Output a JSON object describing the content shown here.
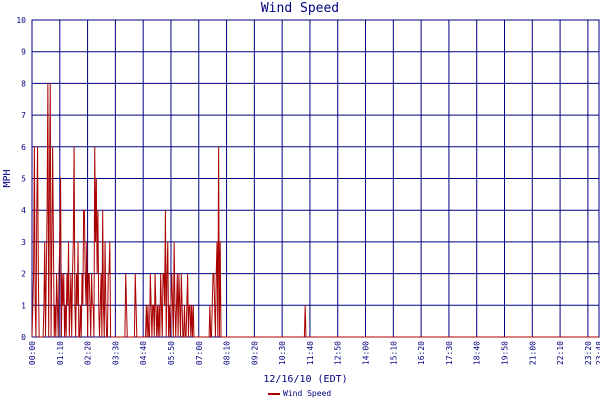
{
  "chart_data": {
    "type": "line",
    "title": "Wind Speed",
    "xlabel": "12/16/10 (EDT)",
    "ylabel": "MPH",
    "ylim": [
      0,
      10
    ],
    "y_ticks": [
      "0",
      "1",
      "2",
      "3",
      "4",
      "5",
      "6",
      "7",
      "8",
      "9",
      "10"
    ],
    "x_ticks": [
      "00:00",
      "01:10",
      "02:20",
      "03:30",
      "04:40",
      "05:50",
      "07:00",
      "08:10",
      "09:20",
      "10:30",
      "11:40",
      "12:50",
      "14:00",
      "15:10",
      "16:20",
      "17:30",
      "18:40",
      "19:50",
      "21:00",
      "22:10",
      "23:20",
      "23:48"
    ],
    "grid": true,
    "legend_position": "bottom",
    "series": [
      {
        "name": "Wind Speed",
        "color": "#aa0000",
        "x_minutes_start": 0,
        "x_minutes_step": 2,
        "values": [
          0,
          1,
          2,
          6,
          1,
          0,
          4,
          6,
          2,
          0,
          0,
          0,
          0,
          0,
          0,
          1,
          3,
          0,
          2,
          4,
          8,
          0,
          5,
          8,
          0,
          3,
          6,
          3,
          0,
          1,
          0,
          2,
          1,
          0,
          2,
          3,
          5,
          0,
          2,
          1,
          2,
          0,
          1,
          0,
          2,
          1,
          3,
          0,
          1,
          2,
          0,
          2,
          3,
          6,
          1,
          0,
          2,
          1,
          3,
          0,
          0,
          1,
          0,
          2,
          1,
          4,
          4,
          2,
          1,
          3,
          0,
          2,
          2,
          1,
          0,
          2,
          1,
          1,
          0,
          6,
          3,
          5,
          2,
          4,
          1,
          0,
          1,
          2,
          0,
          4,
          1,
          0,
          3,
          1,
          0,
          0,
          2,
          2,
          3,
          0,
          0,
          0,
          0,
          0,
          0,
          0,
          0,
          0,
          0,
          0,
          0,
          0,
          0,
          0,
          0,
          0,
          0,
          0,
          2,
          1,
          0,
          0,
          0,
          0,
          0,
          0,
          0,
          0,
          0,
          0,
          2,
          1,
          0,
          0,
          0,
          0,
          0,
          0,
          0,
          0,
          0,
          0,
          0,
          0,
          1,
          0,
          1,
          0,
          0,
          2,
          1,
          0,
          1,
          1,
          0,
          2,
          1,
          0,
          1,
          0,
          1,
          0,
          2,
          1,
          0,
          2,
          2,
          1,
          4,
          0,
          2,
          3,
          0,
          1,
          0,
          1,
          2,
          1,
          0,
          3,
          1,
          0,
          1,
          2,
          0,
          2,
          1,
          0,
          2,
          1,
          0,
          0,
          1,
          0,
          0,
          1,
          2,
          0,
          1,
          1,
          0,
          1,
          0,
          1,
          0,
          0,
          0,
          0,
          0,
          0,
          0,
          0,
          0,
          0,
          0,
          0,
          0,
          0,
          0,
          0,
          0,
          0,
          0,
          0,
          1,
          0,
          0,
          1,
          2,
          2,
          1,
          0,
          2,
          3,
          0,
          6,
          0,
          3,
          0,
          0,
          0,
          0,
          0,
          0,
          0,
          0,
          0,
          0,
          0,
          0,
          0,
          0,
          0,
          0,
          0,
          0,
          0,
          0,
          0,
          0,
          0,
          0,
          0,
          0,
          0,
          0,
          0,
          0,
          0,
          0,
          0,
          0,
          0,
          0,
          0,
          0,
          0,
          0,
          0,
          0,
          0,
          0,
          0,
          0,
          0,
          0,
          0,
          0,
          0,
          0,
          0,
          0,
          0,
          0,
          0,
          0,
          0,
          0,
          0,
          0,
          0,
          0,
          0,
          0,
          0,
          0,
          0,
          0,
          0,
          0,
          0,
          0,
          0,
          0,
          0,
          0,
          0,
          0,
          0,
          0,
          0,
          0,
          0,
          0,
          0,
          0,
          0,
          0,
          0,
          0,
          0,
          0,
          0,
          0,
          0,
          0,
          0,
          0,
          0,
          0,
          0,
          0,
          0,
          0,
          1,
          0,
          0,
          0,
          0,
          0,
          0,
          0,
          0,
          0,
          0,
          0,
          0,
          0,
          0,
          0,
          0,
          0,
          0,
          0,
          0,
          0,
          0,
          0,
          0,
          0,
          0,
          0,
          0,
          0,
          0,
          0,
          0,
          0,
          0,
          0,
          0,
          0,
          0,
          0,
          0,
          0,
          0,
          0,
          0,
          0,
          0,
          0,
          0,
          0,
          0,
          0,
          0,
          0,
          0,
          0,
          0,
          0,
          0,
          0,
          0,
          0,
          0,
          0,
          0,
          0,
          0,
          0,
          0,
          0,
          0,
          0,
          0,
          0,
          0,
          0,
          0,
          0,
          0,
          0,
          0,
          0,
          0,
          0,
          0,
          0,
          0,
          0,
          0,
          0,
          0,
          0,
          0,
          0,
          0,
          0,
          0,
          0,
          0,
          0,
          0,
          0,
          0,
          0,
          0,
          0,
          0,
          0,
          0,
          0,
          0,
          0,
          0,
          0,
          0,
          0,
          0,
          0,
          0,
          0,
          0,
          0,
          0,
          0,
          0,
          0,
          0,
          0,
          0,
          0,
          0,
          0,
          0,
          0,
          0,
          0,
          0,
          0,
          0,
          0,
          0,
          0,
          0,
          0,
          0,
          0,
          0,
          0,
          0,
          0,
          0,
          0,
          0,
          0,
          0,
          0,
          0,
          0,
          0,
          0,
          0,
          0,
          0,
          0,
          0,
          0,
          0,
          0,
          0,
          0,
          0,
          0,
          0,
          0,
          0,
          0,
          0,
          0,
          0,
          0,
          0,
          0,
          0,
          0,
          0,
          0,
          0,
          0,
          0,
          0,
          0,
          0,
          0,
          0,
          0,
          0,
          0,
          0,
          0,
          0,
          0,
          0,
          0,
          0,
          0,
          0,
          0,
          0,
          0,
          0,
          0,
          0,
          0,
          0,
          0,
          0,
          0,
          0,
          0,
          0,
          0,
          0,
          0,
          0,
          0,
          0,
          0,
          0,
          0,
          0,
          0,
          0,
          0,
          0,
          0,
          0,
          0,
          0,
          0,
          0,
          0,
          0,
          0,
          0,
          0,
          0,
          0,
          0,
          0,
          0,
          0,
          0,
          0,
          0,
          0,
          0,
          0,
          0,
          0,
          0,
          0,
          0,
          0,
          0,
          0,
          0,
          0,
          0,
          0,
          0,
          0,
          0,
          0,
          0,
          0,
          0,
          0,
          0,
          0,
          0,
          0,
          0,
          0,
          0,
          0,
          0,
          0,
          0,
          0,
          0,
          0,
          0,
          0,
          0,
          0,
          0,
          0,
          0,
          0,
          0,
          0,
          0,
          0,
          0,
          0,
          0,
          0,
          0,
          0,
          0,
          0,
          0,
          0,
          0,
          0,
          0,
          0,
          0,
          0,
          0,
          0,
          0,
          0,
          0,
          0,
          0,
          0,
          0,
          0,
          0,
          0,
          0,
          0,
          0,
          0,
          0,
          0,
          0,
          0,
          0,
          0,
          0,
          0,
          0,
          0,
          0,
          0,
          0,
          0,
          0,
          0,
          0,
          0,
          0,
          0,
          0,
          0,
          0,
          0,
          0,
          0,
          0,
          0,
          0,
          0,
          0,
          0,
          0,
          0,
          0,
          0,
          0,
          0,
          0,
          0,
          0,
          0,
          0,
          0,
          0,
          0,
          0,
          0,
          0,
          0,
          0,
          0,
          0,
          0,
          0,
          0
        ]
      }
    ]
  },
  "colors": {
    "axis": "#000080",
    "grid": "#000080",
    "series": "#aa0000"
  }
}
